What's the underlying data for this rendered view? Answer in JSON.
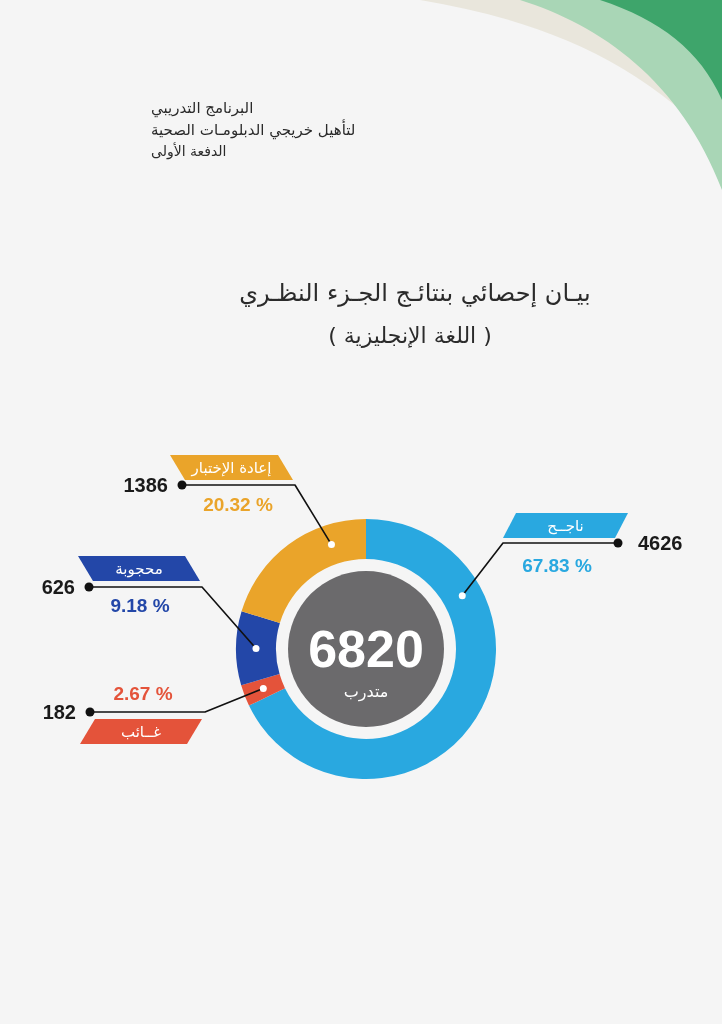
{
  "chart_data": {
    "type": "donut",
    "title": "بيـان إحصائي بنتائـج الجـزء النظـري",
    "subtitle": "( اللغة الإنجليزية )",
    "categories": [
      "ناجــح",
      "غــائب",
      "محجوبة",
      "إعادة الإختبار"
    ],
    "values": [
      4626,
      182,
      626,
      1386
    ],
    "colors": [
      "#29a8e0",
      "#e4533a",
      "#2347a8",
      "#eaa42a"
    ],
    "data_labels": true,
    "annotations": [
      "البرنامج التدريبي",
      "لتأهيل خريجي الدبلومـات الصحية",
      "الدفعة الأولى",
      "6820",
      "متدرب",
      "67.83 %",
      "2.67 %",
      "9.18 %",
      "20.32 %"
    ]
  }
}
